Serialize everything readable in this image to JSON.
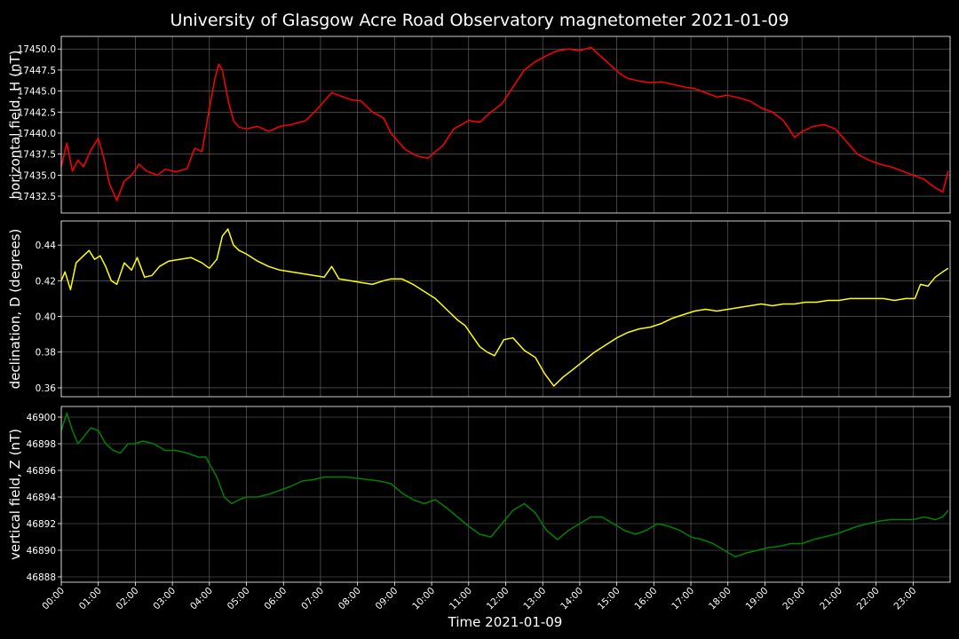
{
  "title": "University of Glasgow Acre Road Observatory magnetometer 2021-01-09",
  "chart_data": [
    {
      "type": "line",
      "ylabel": "horizontal field, H (nT)",
      "color": "#ff0000",
      "ylim": [
        17430.5,
        17451.5
      ],
      "yticks": [
        "17432.5",
        "17435.0",
        "17437.5",
        "17440.0",
        "17442.5",
        "17445.0",
        "17447.5",
        "17450.0"
      ],
      "x": [
        0.0,
        0.15,
        0.3,
        0.45,
        0.6,
        0.8,
        1.0,
        1.15,
        1.3,
        1.5,
        1.7,
        1.9,
        2.1,
        2.3,
        2.6,
        2.8,
        3.1,
        3.4,
        3.6,
        3.8,
        4.0,
        4.15,
        4.25,
        4.35,
        4.5,
        4.65,
        4.8,
        5.0,
        5.3,
        5.6,
        5.9,
        6.2,
        6.6,
        6.9,
        7.1,
        7.3,
        7.5,
        7.8,
        8.1,
        8.4,
        8.7,
        8.9,
        9.1,
        9.3,
        9.6,
        9.9,
        10.1,
        10.3,
        10.6,
        10.8,
        11.0,
        11.3,
        11.6,
        11.9,
        12.2,
        12.5,
        12.8,
        13.1,
        13.4,
        13.7,
        14.0,
        14.3,
        14.6,
        14.9,
        15.1,
        15.3,
        15.6,
        15.9,
        16.2,
        16.5,
        16.8,
        17.1,
        17.4,
        17.7,
        18.0,
        18.3,
        18.6,
        18.9,
        19.2,
        19.5,
        19.8,
        20.0,
        20.3,
        20.6,
        20.9,
        21.2,
        21.5,
        21.8,
        22.1,
        22.4,
        22.7,
        23.0,
        23.3,
        23.6,
        23.8,
        23.95
      ],
      "values": [
        17436.0,
        17438.8,
        17435.5,
        17436.8,
        17436.0,
        17438.0,
        17439.4,
        17437.0,
        17434.0,
        17432.0,
        17434.3,
        17435.0,
        17436.3,
        17435.5,
        17435.0,
        17435.7,
        17435.4,
        17435.8,
        17438.2,
        17437.8,
        17443.0,
        17446.5,
        17448.2,
        17447.5,
        17444.0,
        17441.5,
        17440.7,
        17440.5,
        17440.8,
        17440.2,
        17440.8,
        17441.0,
        17441.5,
        17442.8,
        17443.8,
        17444.8,
        17444.5,
        17444.0,
        17443.8,
        17442.5,
        17441.8,
        17440.0,
        17439.0,
        17438.0,
        17437.3,
        17437.0,
        17437.8,
        17438.5,
        17440.5,
        17441.0,
        17441.5,
        17441.3,
        17442.5,
        17443.5,
        17445.5,
        17447.5,
        17448.5,
        17449.2,
        17449.8,
        17450.0,
        17449.8,
        17450.2,
        17449.0,
        17447.8,
        17447.0,
        17446.5,
        17446.2,
        17446.0,
        17446.1,
        17445.8,
        17445.5,
        17445.3,
        17444.8,
        17444.3,
        17444.5,
        17444.2,
        17443.8,
        17443.0,
        17442.5,
        17441.5,
        17439.5,
        17440.2,
        17440.8,
        17441.0,
        17440.5,
        17439.0,
        17437.5,
        17436.8,
        17436.3,
        17436.0,
        17435.5,
        17435.0,
        17434.5,
        17433.5,
        17433.0,
        17435.5
      ]
    },
    {
      "type": "line",
      "ylabel": "declination, D (degrees)",
      "color": "#ffff00",
      "ylim": [
        0.355,
        0.4535
      ],
      "yticks": [
        "0.36",
        "0.38",
        "0.40",
        "0.42",
        "0.44"
      ],
      "x": [
        0.0,
        0.1,
        0.25,
        0.4,
        0.55,
        0.75,
        0.9,
        1.05,
        1.2,
        1.35,
        1.5,
        1.7,
        1.9,
        2.05,
        2.25,
        2.45,
        2.65,
        2.9,
        3.2,
        3.5,
        3.8,
        4.0,
        4.2,
        4.35,
        4.5,
        4.65,
        4.8,
        5.0,
        5.3,
        5.6,
        5.9,
        6.2,
        6.5,
        6.8,
        7.1,
        7.3,
        7.5,
        7.8,
        8.1,
        8.4,
        8.7,
        8.9,
        9.2,
        9.5,
        9.8,
        10.1,
        10.4,
        10.7,
        10.9,
        11.1,
        11.3,
        11.5,
        11.7,
        11.95,
        12.2,
        12.5,
        12.8,
        13.05,
        13.3,
        13.55,
        13.8,
        14.1,
        14.4,
        14.7,
        15.0,
        15.3,
        15.6,
        15.9,
        16.2,
        16.5,
        16.8,
        17.1,
        17.4,
        17.7,
        18.0,
        18.3,
        18.6,
        18.9,
        19.2,
        19.5,
        19.8,
        20.1,
        20.4,
        20.7,
        21.0,
        21.3,
        21.6,
        21.9,
        22.2,
        22.5,
        22.8,
        23.05,
        23.2,
        23.4,
        23.6,
        23.8,
        23.95
      ],
      "values": [
        0.42,
        0.425,
        0.415,
        0.43,
        0.433,
        0.437,
        0.432,
        0.434,
        0.428,
        0.42,
        0.418,
        0.43,
        0.426,
        0.433,
        0.422,
        0.423,
        0.428,
        0.431,
        0.432,
        0.433,
        0.43,
        0.427,
        0.432,
        0.445,
        0.449,
        0.44,
        0.437,
        0.435,
        0.431,
        0.428,
        0.426,
        0.425,
        0.424,
        0.423,
        0.422,
        0.428,
        0.421,
        0.42,
        0.419,
        0.418,
        0.42,
        0.421,
        0.421,
        0.418,
        0.414,
        0.41,
        0.404,
        0.398,
        0.395,
        0.389,
        0.383,
        0.38,
        0.378,
        0.387,
        0.388,
        0.381,
        0.377,
        0.368,
        0.361,
        0.366,
        0.37,
        0.375,
        0.38,
        0.384,
        0.388,
        0.391,
        0.393,
        0.394,
        0.396,
        0.399,
        0.401,
        0.403,
        0.404,
        0.403,
        0.404,
        0.405,
        0.406,
        0.407,
        0.406,
        0.407,
        0.407,
        0.408,
        0.408,
        0.409,
        0.409,
        0.41,
        0.41,
        0.41,
        0.41,
        0.409,
        0.41,
        0.41,
        0.418,
        0.417,
        0.422,
        0.425,
        0.427
      ]
    },
    {
      "type": "line",
      "ylabel": "vertical field, Z (nT)",
      "color": "#008000",
      "ylim": [
        46887.6,
        46900.8
      ],
      "yticks": [
        "46888",
        "46890",
        "46892",
        "46894",
        "46896",
        "46898",
        "46900"
      ],
      "x": [
        0.0,
        0.15,
        0.3,
        0.45,
        0.6,
        0.8,
        1.0,
        1.2,
        1.4,
        1.6,
        1.8,
        2.0,
        2.2,
        2.5,
        2.8,
        3.1,
        3.4,
        3.7,
        3.9,
        4.0,
        4.2,
        4.4,
        4.6,
        4.8,
        5.0,
        5.3,
        5.6,
        5.9,
        6.2,
        6.5,
        6.8,
        7.1,
        7.4,
        7.7,
        8.0,
        8.3,
        8.6,
        8.9,
        9.2,
        9.5,
        9.8,
        10.1,
        10.4,
        10.7,
        11.0,
        11.3,
        11.6,
        11.9,
        12.2,
        12.5,
        12.8,
        13.1,
        13.4,
        13.7,
        14.0,
        14.3,
        14.6,
        14.9,
        15.2,
        15.5,
        15.8,
        16.1,
        16.4,
        16.7,
        17.0,
        17.3,
        17.6,
        17.9,
        18.2,
        18.5,
        18.8,
        19.1,
        19.4,
        19.7,
        20.0,
        20.3,
        20.6,
        20.9,
        21.2,
        21.5,
        21.8,
        22.1,
        22.4,
        22.7,
        23.0,
        23.3,
        23.6,
        23.8,
        23.95
      ],
      "values": [
        46899.0,
        46900.3,
        46899.0,
        46898.0,
        46898.5,
        46899.2,
        46899.0,
        46898.0,
        46897.5,
        46897.3,
        46898.0,
        46898.0,
        46898.2,
        46898.0,
        46897.5,
        46897.5,
        46897.3,
        46897.0,
        46897.0,
        46896.5,
        46895.5,
        46894.0,
        46893.5,
        46893.8,
        46894.0,
        46894.0,
        46894.2,
        46894.5,
        46894.8,
        46895.2,
        46895.3,
        46895.5,
        46895.5,
        46895.5,
        46895.4,
        46895.3,
        46895.2,
        46895.0,
        46894.3,
        46893.8,
        46893.5,
        46893.8,
        46893.2,
        46892.5,
        46891.8,
        46891.2,
        46891.0,
        46892.0,
        46893.0,
        46893.5,
        46892.8,
        46891.5,
        46890.8,
        46891.5,
        46892.0,
        46892.5,
        46892.5,
        46892.0,
        46891.5,
        46891.2,
        46891.5,
        46892.0,
        46891.8,
        46891.5,
        46891.0,
        46890.8,
        46890.5,
        46890.0,
        46889.5,
        46889.8,
        46890.0,
        46890.2,
        46890.3,
        46890.5,
        46890.5,
        46890.8,
        46891.0,
        46891.2,
        46891.5,
        46891.8,
        46892.0,
        46892.2,
        46892.3,
        46892.3,
        46892.3,
        46892.5,
        46892.3,
        46892.5,
        46893.0
      ]
    }
  ],
  "xlabel": "Time 2021-01-09",
  "xticks": [
    "00:00",
    "01:00",
    "02:00",
    "03:00",
    "04:00",
    "05:00",
    "06:00",
    "07:00",
    "08:00",
    "09:00",
    "10:00",
    "11:00",
    "12:00",
    "13:00",
    "14:00",
    "15:00",
    "16:00",
    "17:00",
    "18:00",
    "19:00",
    "20:00",
    "21:00",
    "22:00",
    "23:00"
  ],
  "xlim": [
    0,
    24
  ],
  "grid": true
}
